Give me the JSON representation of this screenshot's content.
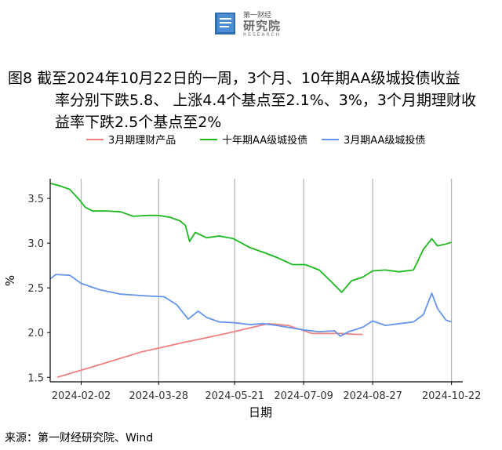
{
  "logo": {
    "name": "第一财经",
    "subtitle": "研究院",
    "english": "RESEARCH",
    "icon": "publication-book-icon"
  },
  "caption": {
    "lines": [
      "图8  截至2024年10月22日的一周，3个月、10年期AA级城投债收益",
      "率分别下跌5.8、 上涨4.4个基点至2.1%、3%，3个月期理财收",
      "益率下跌2.5个基点至2%"
    ]
  },
  "source": "来源：第一财经研究院、Wind",
  "chart_data": {
    "type": "line",
    "xlabel": "日期",
    "ylabel": "%",
    "x_ticks": [
      "2024-02-02",
      "2024-03-28",
      "2024-05-21",
      "2024-07-09",
      "2024-08-27",
      "2024-10-22"
    ],
    "y_ticks": [
      "1.5",
      "2.0",
      "2.5",
      "3.0",
      "3.5"
    ],
    "ylim": [
      1.45,
      3.72
    ],
    "xlim": [
      "2024-01-11",
      "2024-10-30"
    ],
    "grid": "vertical lines at x ticks",
    "legend_position": "top",
    "series": [
      {
        "name": "3月期理财产品",
        "color": "#f08080",
        "points": [
          [
            "2024-01-16",
            1.5
          ],
          [
            "2024-02-15",
            1.64
          ],
          [
            "2024-03-15",
            1.78
          ],
          [
            "2024-04-15",
            1.89
          ],
          [
            "2024-05-15",
            1.99
          ],
          [
            "2024-06-14",
            2.1
          ],
          [
            "2024-06-28",
            2.08
          ],
          [
            "2024-07-15",
            1.99
          ],
          [
            "2024-08-05",
            1.99
          ],
          [
            "2024-08-15",
            1.98
          ],
          [
            "2024-08-20",
            1.98
          ]
        ]
      },
      {
        "name": "十年期AA级城投债",
        "color": "#1db81d",
        "points": [
          [
            "2024-01-11",
            3.67
          ],
          [
            "2024-01-18",
            3.64
          ],
          [
            "2024-01-25",
            3.6
          ],
          [
            "2024-02-01",
            3.48
          ],
          [
            "2024-02-05",
            3.4
          ],
          [
            "2024-02-10",
            3.36
          ],
          [
            "2024-02-20",
            3.36
          ],
          [
            "2024-03-01",
            3.35
          ],
          [
            "2024-03-10",
            3.3
          ],
          [
            "2024-03-20",
            3.31
          ],
          [
            "2024-03-28",
            3.31
          ],
          [
            "2024-04-05",
            3.29
          ],
          [
            "2024-04-12",
            3.25
          ],
          [
            "2024-04-16",
            3.2
          ],
          [
            "2024-04-19",
            3.02
          ],
          [
            "2024-04-23",
            3.12
          ],
          [
            "2024-05-01",
            3.06
          ],
          [
            "2024-05-10",
            3.08
          ],
          [
            "2024-05-20",
            3.05
          ],
          [
            "2024-06-01",
            2.95
          ],
          [
            "2024-06-10",
            2.9
          ],
          [
            "2024-06-20",
            2.84
          ],
          [
            "2024-07-01",
            2.76
          ],
          [
            "2024-07-10",
            2.76
          ],
          [
            "2024-07-20",
            2.7
          ],
          [
            "2024-07-28",
            2.58
          ],
          [
            "2024-08-05",
            2.45
          ],
          [
            "2024-08-12",
            2.58
          ],
          [
            "2024-08-20",
            2.62
          ],
          [
            "2024-08-27",
            2.69
          ],
          [
            "2024-09-05",
            2.7
          ],
          [
            "2024-09-15",
            2.68
          ],
          [
            "2024-09-25",
            2.7
          ],
          [
            "2024-10-02",
            2.93
          ],
          [
            "2024-10-08",
            3.05
          ],
          [
            "2024-10-12",
            2.97
          ],
          [
            "2024-10-18",
            2.99
          ],
          [
            "2024-10-22",
            3.01
          ]
        ]
      },
      {
        "name": "3月期AA级城投债",
        "color": "#6495ed",
        "points": [
          [
            "2024-01-11",
            2.6
          ],
          [
            "2024-01-15",
            2.65
          ],
          [
            "2024-01-25",
            2.64
          ],
          [
            "2024-02-02",
            2.55
          ],
          [
            "2024-02-15",
            2.48
          ],
          [
            "2024-03-01",
            2.43
          ],
          [
            "2024-03-20",
            2.41
          ],
          [
            "2024-04-01",
            2.4
          ],
          [
            "2024-04-10",
            2.31
          ],
          [
            "2024-04-18",
            2.15
          ],
          [
            "2024-04-25",
            2.24
          ],
          [
            "2024-05-01",
            2.17
          ],
          [
            "2024-05-10",
            2.12
          ],
          [
            "2024-05-21",
            2.11
          ],
          [
            "2024-06-01",
            2.09
          ],
          [
            "2024-06-10",
            2.1
          ],
          [
            "2024-06-20",
            2.08
          ],
          [
            "2024-07-01",
            2.05
          ],
          [
            "2024-07-09",
            2.03
          ],
          [
            "2024-07-20",
            2.01
          ],
          [
            "2024-07-31",
            2.02
          ],
          [
            "2024-08-04",
            1.96
          ],
          [
            "2024-08-10",
            2.01
          ],
          [
            "2024-08-20",
            2.06
          ],
          [
            "2024-08-27",
            2.13
          ],
          [
            "2024-09-05",
            2.08
          ],
          [
            "2024-09-15",
            2.1
          ],
          [
            "2024-09-25",
            2.12
          ],
          [
            "2024-10-02",
            2.2
          ],
          [
            "2024-10-08",
            2.44
          ],
          [
            "2024-10-12",
            2.27
          ],
          [
            "2024-10-18",
            2.14
          ],
          [
            "2024-10-22",
            2.12
          ]
        ]
      }
    ]
  }
}
